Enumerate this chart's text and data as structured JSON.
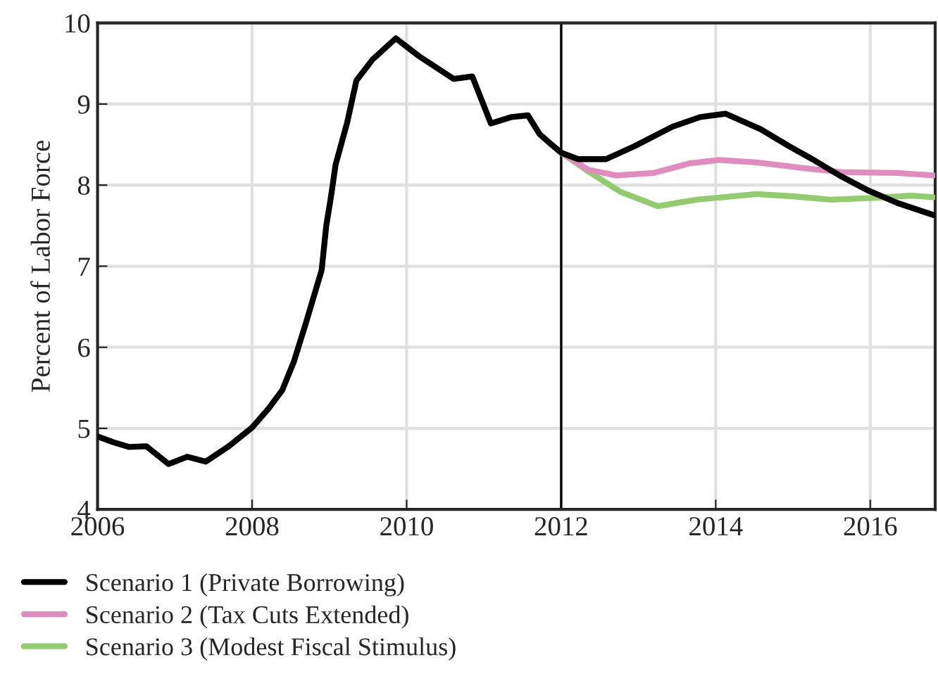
{
  "chart_data": {
    "type": "line",
    "ylabel": "Percent of Labor Force",
    "xlim": [
      2006,
      2016.84
    ],
    "xticks": [
      2006,
      2008,
      2010,
      2012,
      2014,
      2016
    ],
    "ylim": [
      4,
      10
    ],
    "yticks": [
      4,
      5,
      6,
      7,
      8,
      9,
      10
    ],
    "grid": true,
    "legend": "bottom",
    "line_style": "solid",
    "ref_lines": [
      {
        "axis": "x",
        "value": 2012,
        "color": "#000000"
      }
    ],
    "series": [
      {
        "name": "Scenario 1 (Private Borrowing)",
        "color": "#000000",
        "x": [
          2006.0,
          2006.2,
          2006.41,
          2006.63,
          2006.92,
          2007.16,
          2007.4,
          2007.7,
          2008.0,
          2008.21,
          2008.39,
          2008.54,
          2008.69,
          2008.9,
          2008.96,
          2009.02,
          2009.08,
          2009.23,
          2009.35,
          2009.56,
          2009.86,
          2010.16,
          2010.61,
          2010.85,
          2011.09,
          2011.36,
          2011.57,
          2011.72,
          2011.85,
          2012.0,
          2012.22,
          2012.58,
          2012.95,
          2013.44,
          2013.8,
          2014.13,
          2014.58,
          2014.95,
          2015.25,
          2015.62,
          2015.98,
          2016.35,
          2016.82
        ],
        "values": [
          4.9,
          4.83,
          4.77,
          4.78,
          4.56,
          4.65,
          4.59,
          4.78,
          5.01,
          5.24,
          5.47,
          5.82,
          6.28,
          6.95,
          7.5,
          7.85,
          8.25,
          8.77,
          9.29,
          9.55,
          9.81,
          9.59,
          9.31,
          9.34,
          8.76,
          8.84,
          8.86,
          8.63,
          8.52,
          8.4,
          8.32,
          8.32,
          8.48,
          8.72,
          8.84,
          8.88,
          8.69,
          8.48,
          8.32,
          8.11,
          7.93,
          7.78,
          7.63
        ]
      },
      {
        "name": "Scenario 2 (Tax Cuts Extended)",
        "color": "#e08cbf",
        "x": [
          2012.0,
          2012.35,
          2012.71,
          2013.2,
          2013.67,
          2014.04,
          2014.53,
          2015.13,
          2015.62,
          2016.35,
          2016.82
        ],
        "values": [
          8.4,
          8.19,
          8.12,
          8.15,
          8.27,
          8.31,
          8.28,
          8.21,
          8.16,
          8.15,
          8.12
        ]
      },
      {
        "name": "Scenario 3 (Modest Fiscal Stimulus)",
        "color": "#92cc6f",
        "x": [
          2012.0,
          2012.35,
          2012.76,
          2013.25,
          2013.75,
          2014.53,
          2015.02,
          2015.49,
          2015.98,
          2016.53,
          2016.82
        ],
        "values": [
          8.4,
          8.17,
          7.92,
          7.74,
          7.82,
          7.89,
          7.86,
          7.82,
          7.84,
          7.87,
          7.85
        ]
      }
    ]
  }
}
